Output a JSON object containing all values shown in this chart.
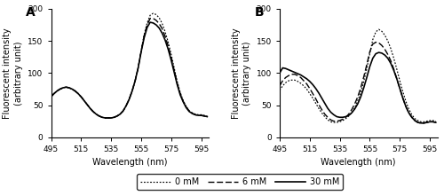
{
  "xlim": [
    495,
    600
  ],
  "ylim": [
    0,
    200
  ],
  "xticks": [
    495,
    515,
    535,
    555,
    575,
    595
  ],
  "yticks": [
    0,
    50,
    100,
    150,
    200
  ],
  "xlabel": "Wavelength (nm)",
  "ylabel": "Fluorescent intensity\n(arbitrary unit)",
  "legend_labels": [
    "0 mM",
    "6 mM",
    "30 mM"
  ],
  "line_color": "black",
  "panel_A_label": "A",
  "panel_B_label": "B",
  "panel_A": {
    "x": [
      495,
      497,
      499,
      501,
      503,
      505,
      507,
      509,
      511,
      513,
      515,
      517,
      519,
      521,
      523,
      525,
      527,
      529,
      531,
      533,
      535,
      537,
      539,
      541,
      543,
      545,
      547,
      549,
      551,
      553,
      555,
      557,
      559,
      561,
      563,
      565,
      567,
      569,
      571,
      573,
      575,
      577,
      579,
      581,
      583,
      585,
      587,
      589,
      591,
      593,
      595,
      597,
      599
    ],
    "y_0mM": [
      63,
      68,
      72,
      75,
      77,
      78,
      77,
      75,
      72,
      68,
      63,
      57,
      51,
      45,
      40,
      36,
      33,
      31,
      30,
      30,
      30,
      31,
      33,
      36,
      41,
      49,
      59,
      72,
      88,
      108,
      135,
      160,
      178,
      190,
      193,
      191,
      186,
      177,
      164,
      148,
      129,
      108,
      87,
      70,
      57,
      48,
      41,
      38,
      36,
      35,
      35,
      34,
      33
    ],
    "y_6mM": [
      63,
      68,
      72,
      75,
      77,
      78,
      77,
      75,
      72,
      68,
      63,
      57,
      51,
      45,
      40,
      36,
      33,
      31,
      30,
      30,
      30,
      31,
      33,
      36,
      41,
      49,
      59,
      72,
      88,
      108,
      134,
      158,
      175,
      185,
      185,
      182,
      177,
      169,
      157,
      142,
      124,
      104,
      84,
      68,
      56,
      47,
      41,
      37,
      35,
      34,
      34,
      33,
      32
    ],
    "y_30mM": [
      63,
      68,
      72,
      75,
      77,
      78,
      77,
      75,
      72,
      68,
      63,
      57,
      51,
      45,
      40,
      36,
      33,
      31,
      30,
      30,
      30,
      31,
      33,
      36,
      41,
      49,
      59,
      72,
      88,
      108,
      133,
      155,
      171,
      179,
      178,
      175,
      170,
      162,
      151,
      137,
      120,
      101,
      82,
      66,
      55,
      46,
      40,
      37,
      35,
      34,
      34,
      33,
      32
    ]
  },
  "panel_B": {
    "x": [
      495,
      497,
      499,
      501,
      503,
      505,
      507,
      509,
      511,
      513,
      515,
      517,
      519,
      521,
      523,
      525,
      527,
      529,
      531,
      533,
      535,
      537,
      539,
      541,
      543,
      545,
      547,
      549,
      551,
      553,
      555,
      557,
      559,
      561,
      563,
      565,
      567,
      569,
      571,
      573,
      575,
      577,
      579,
      581,
      583,
      585,
      587,
      589,
      591,
      593,
      595,
      597,
      599
    ],
    "y_0mM": [
      73,
      80,
      85,
      88,
      89,
      89,
      87,
      84,
      80,
      75,
      68,
      61,
      53,
      45,
      38,
      32,
      27,
      24,
      23,
      23,
      24,
      26,
      29,
      33,
      38,
      46,
      57,
      70,
      87,
      107,
      130,
      152,
      164,
      168,
      165,
      159,
      150,
      138,
      123,
      106,
      88,
      71,
      56,
      44,
      35,
      29,
      26,
      24,
      24,
      25,
      26,
      26,
      25
    ],
    "y_6mM": [
      80,
      88,
      93,
      96,
      98,
      98,
      96,
      93,
      88,
      83,
      76,
      68,
      60,
      51,
      43,
      36,
      31,
      27,
      25,
      25,
      26,
      28,
      31,
      36,
      43,
      52,
      63,
      77,
      94,
      113,
      133,
      145,
      148,
      147,
      143,
      137,
      129,
      119,
      106,
      91,
      76,
      61,
      48,
      38,
      31,
      26,
      23,
      22,
      22,
      23,
      24,
      24,
      23
    ],
    "y_30mM": [
      100,
      108,
      107,
      105,
      103,
      101,
      99,
      97,
      94,
      91,
      87,
      82,
      76,
      69,
      61,
      53,
      45,
      39,
      35,
      32,
      31,
      31,
      32,
      34,
      38,
      44,
      52,
      63,
      77,
      93,
      110,
      123,
      130,
      132,
      131,
      128,
      123,
      115,
      104,
      91,
      76,
      61,
      48,
      38,
      31,
      26,
      23,
      22,
      22,
      23,
      24,
      24,
      23
    ]
  }
}
